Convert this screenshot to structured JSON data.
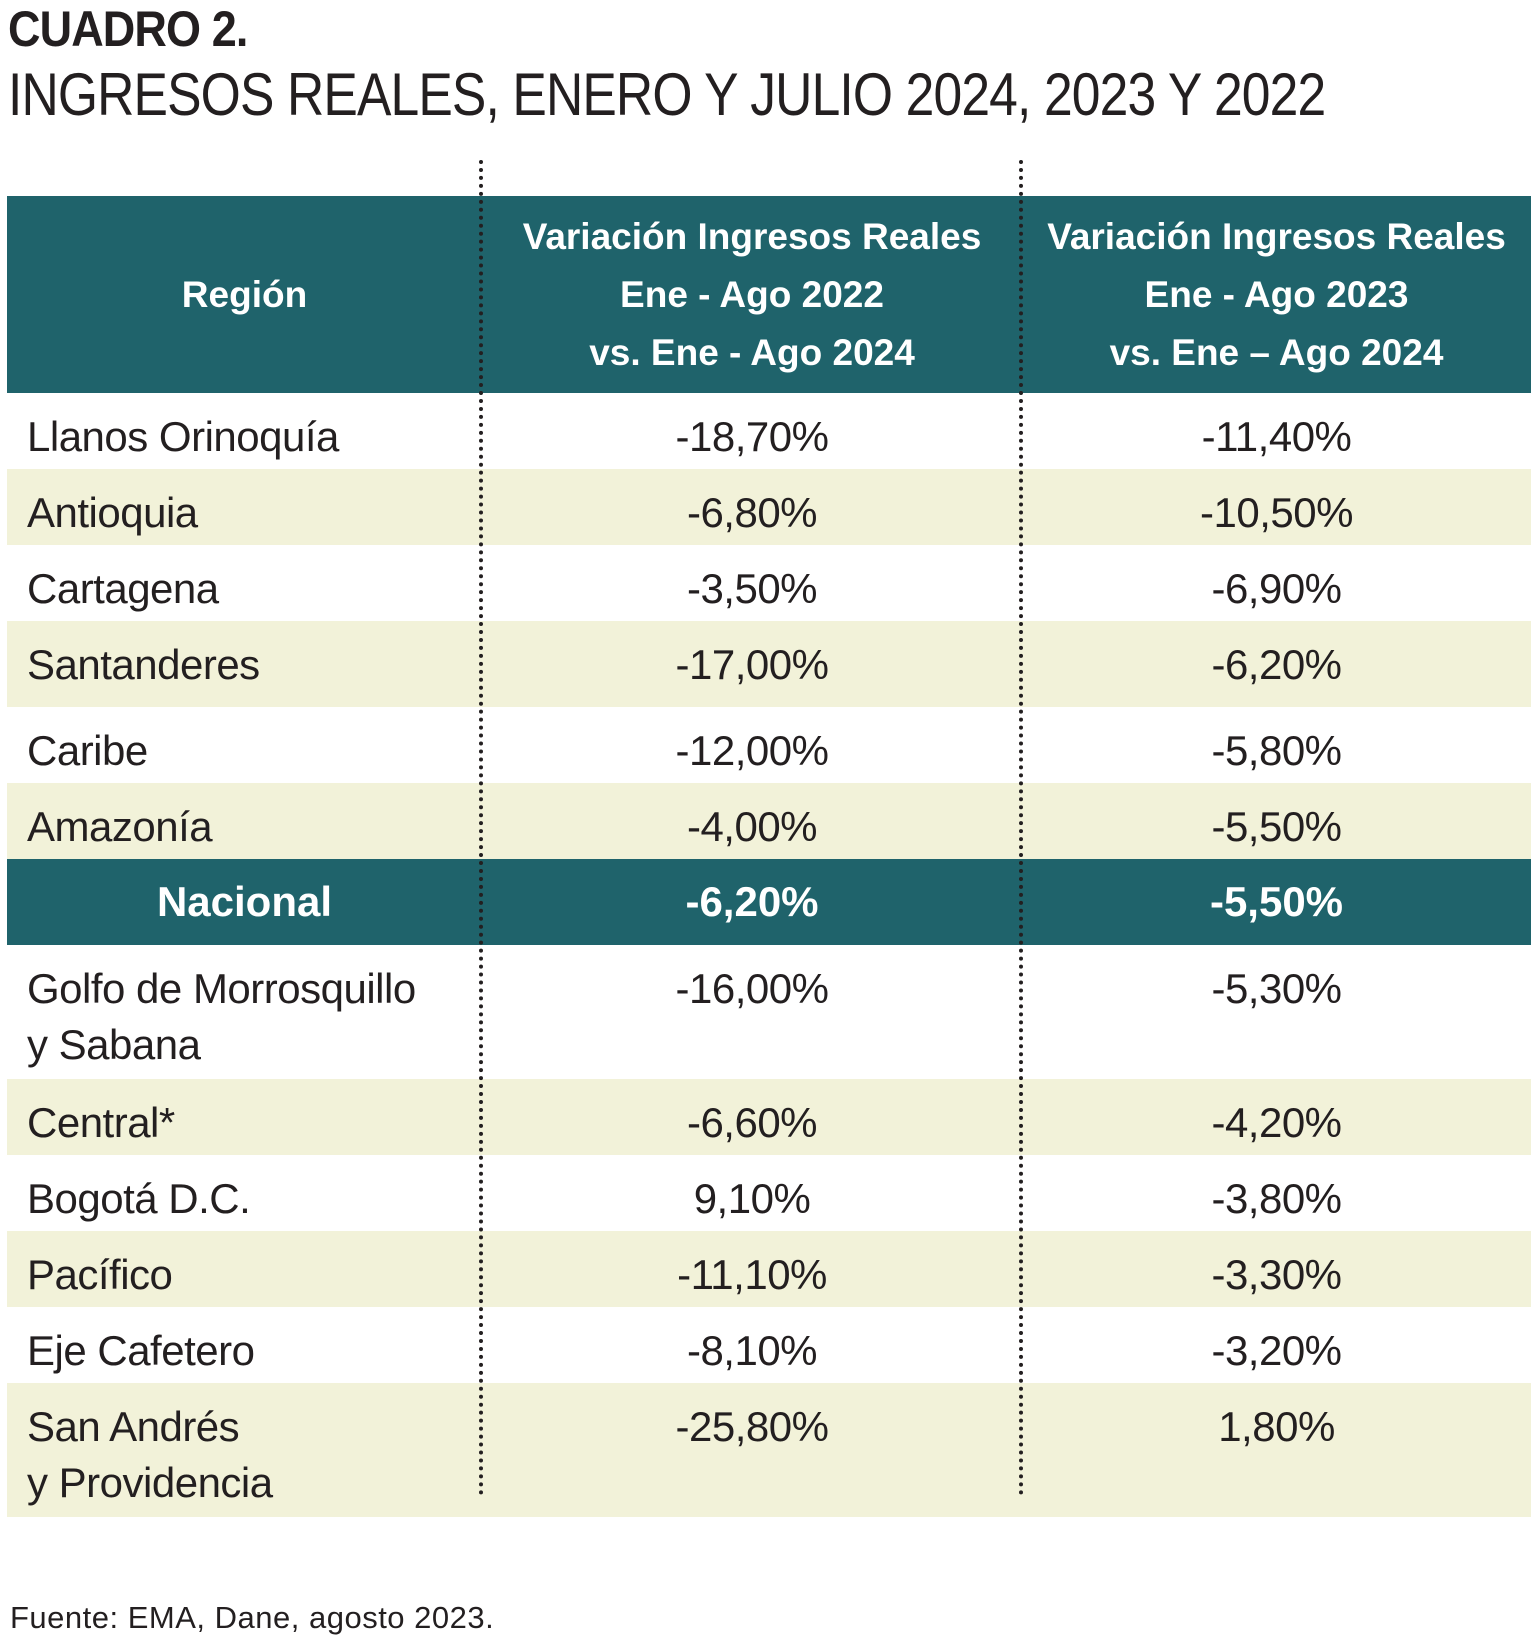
{
  "heading": {
    "label": "CUADRO 2.",
    "title": "INGRESOS REALES, ENERO Y JULIO 2024, 2023 Y 2022"
  },
  "chart_data": {
    "type": "table",
    "title": "INGRESOS REALES, ENERO Y JULIO 2024, 2023 Y 2022",
    "columns": [
      "Región",
      "Variación Ingresos Reales Ene - Ago 2022 vs. Ene - Ago 2024",
      "Variación Ingresos Reales Ene - Ago 2023 vs. Ene – Ago 2024"
    ],
    "header": {
      "col1": "Región",
      "col2": [
        "Variación Ingresos Reales",
        "Ene - Ago 2022",
        "vs. Ene - Ago 2024"
      ],
      "col3": [
        "Variación Ingresos Reales",
        "Ene - Ago 2023",
        "vs. Ene – Ago 2024"
      ]
    },
    "rows": [
      {
        "region": [
          "Llanos Orinoquía"
        ],
        "v2022": "-18,70%",
        "v2023": "-11,40%",
        "value_2022": -18.7,
        "value_2023": -11.4,
        "highlight": false
      },
      {
        "region": [
          "Antioquia"
        ],
        "v2022": "-6,80%",
        "v2023": "-10,50%",
        "value_2022": -6.8,
        "value_2023": -10.5,
        "highlight": false
      },
      {
        "region": [
          "Cartagena"
        ],
        "v2022": "-3,50%",
        "v2023": "-6,90%",
        "value_2022": -3.5,
        "value_2023": -6.9,
        "highlight": false
      },
      {
        "region": [
          "Santanderes"
        ],
        "v2022": "-17,00%",
        "v2023": "-6,20%",
        "value_2022": -17.0,
        "value_2023": -6.2,
        "highlight": false
      },
      {
        "region": [
          "Caribe"
        ],
        "v2022": "-12,00%",
        "v2023": "-5,80%",
        "value_2022": -12.0,
        "value_2023": -5.8,
        "highlight": false
      },
      {
        "region": [
          "Amazonía"
        ],
        "v2022": "-4,00%",
        "v2023": "-5,50%",
        "value_2022": -4.0,
        "value_2023": -5.5,
        "highlight": false
      },
      {
        "region": [
          "Nacional"
        ],
        "v2022": "-6,20%",
        "v2023": "-5,50%",
        "value_2022": -6.2,
        "value_2023": -5.5,
        "highlight": true
      },
      {
        "region": [
          "Golfo de  Morrosquillo",
          "y Sabana"
        ],
        "v2022": "-16,00%",
        "v2023": "-5,30%",
        "value_2022": -16.0,
        "value_2023": -5.3,
        "highlight": false
      },
      {
        "region": [
          "Central*"
        ],
        "v2022": "-6,60%",
        "v2023": "-4,20%",
        "value_2022": -6.6,
        "value_2023": -4.2,
        "highlight": false
      },
      {
        "region": [
          "Bogotá D.C."
        ],
        "v2022": "9,10%",
        "v2023": "-3,80%",
        "value_2022": 9.1,
        "value_2023": -3.8,
        "highlight": false
      },
      {
        "region": [
          "Pacífico"
        ],
        "v2022": "-11,10%",
        "v2023": "-3,30%",
        "value_2022": -11.1,
        "value_2023": -3.3,
        "highlight": false
      },
      {
        "region": [
          "Eje Cafetero"
        ],
        "v2022": "-8,10%",
        "v2023": "-3,20%",
        "value_2022": -8.1,
        "value_2023": -3.2,
        "highlight": false
      },
      {
        "region": [
          "San Andrés",
          "y Providencia"
        ],
        "v2022": "-25,80%",
        "v2023": "1,80%",
        "value_2022": -25.8,
        "value_2023": 1.8,
        "highlight": false
      }
    ]
  },
  "source": "Fuente: EMA, Dane, agosto 2023.",
  "colors": {
    "header_bg": "#1f636b",
    "alt_row_bg": "#f2f2d9",
    "text": "#231f20"
  }
}
